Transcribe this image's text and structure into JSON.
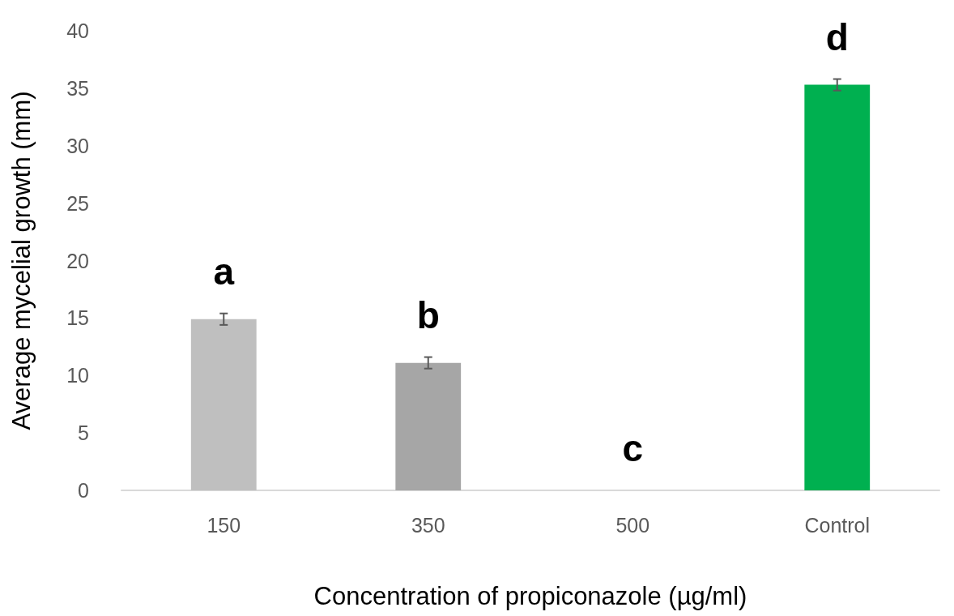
{
  "chart_data": {
    "type": "bar",
    "xlabel": "Concentration of propiconazole (µg/ml)",
    "ylabel": "Average mycelial growth (mm)",
    "categories": [
      "150",
      "350",
      "500",
      "Control"
    ],
    "values": [
      14.9,
      11.1,
      0,
      35.3
    ],
    "colors": [
      "#bfbfbf",
      "#a6a6a6",
      "#a6a6a6",
      "#00b050"
    ],
    "errors": [
      0.5,
      0.5,
      null,
      0.5
    ],
    "ylim": [
      0,
      40
    ],
    "yticks": [
      0,
      5,
      10,
      15,
      20,
      25,
      30,
      35,
      40
    ],
    "grid": false,
    "annotations": [
      "a",
      "b",
      "c",
      "d"
    ]
  }
}
